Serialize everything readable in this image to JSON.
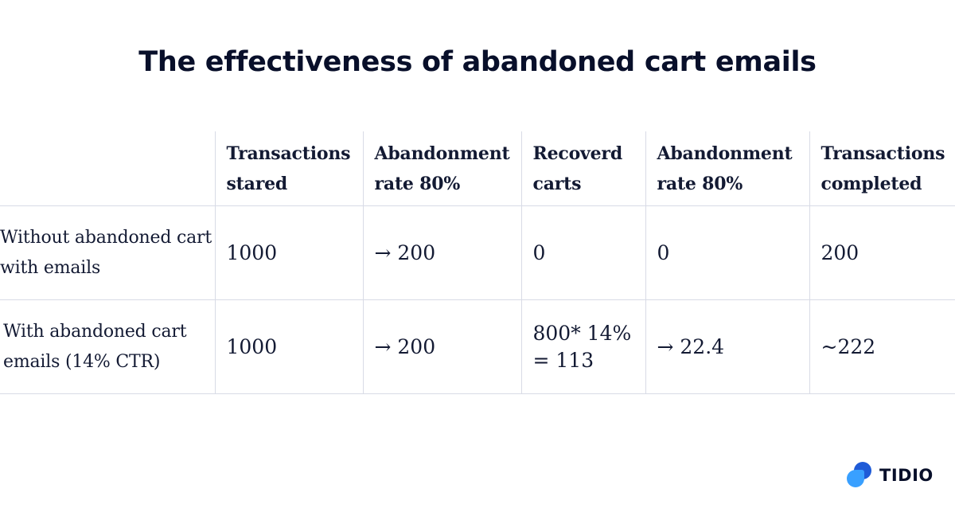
{
  "title": "The effectiveness of abandoned cart emails",
  "table": {
    "headers": [
      "",
      "Transactions stared",
      "Abandonment rate 80%",
      "Recoverd carts",
      "Abandonment rate 80%",
      "Transactions completed"
    ],
    "rows": [
      {
        "label": "Without abandoned cart with emails",
        "cells": [
          "1000",
          "→ 200",
          "0",
          "0",
          "200"
        ]
      },
      {
        "label": "With abandoned cart emails (14% CTR)",
        "cells": [
          "1000",
          "→ 200",
          "800* 14% = 113",
          "→ 22.4",
          "~222"
        ]
      }
    ]
  },
  "brand": {
    "name": "TIDIO",
    "logo_icon": "tidio-chat-bubbles-icon",
    "colors": [
      "#1f5bd7",
      "#39a0ff"
    ]
  }
}
